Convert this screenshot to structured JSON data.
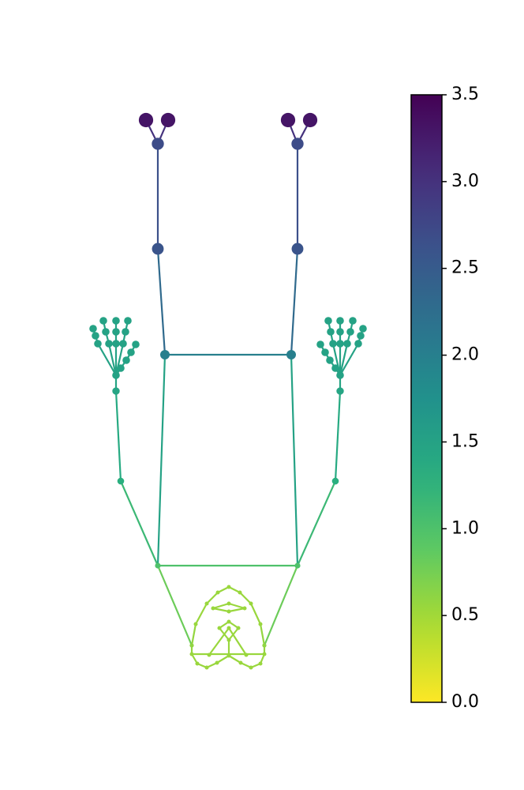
{
  "chart_data": {
    "type": "skeleton",
    "colormap": "viridis",
    "reverse_colormap": true,
    "clim": [
      0,
      3.5
    ],
    "cticks": [
      {
        "value": 0,
        "label": "0.0"
      },
      {
        "value": 0.5,
        "label": "0.5"
      },
      {
        "value": 1,
        "label": "1.0"
      },
      {
        "value": 1.5,
        "label": "1.5"
      },
      {
        "value": 2,
        "label": "2.0"
      },
      {
        "value": 2.5,
        "label": "2.5"
      },
      {
        "value": 3,
        "label": "3.0"
      },
      {
        "value": 3.5,
        "label": "3.5"
      }
    ],
    "xlim": [
      0,
      664
    ],
    "ylim": [
      1000,
      0
    ],
    "joints": {
      "x": [
        200,
        377,
        153,
        425,
        147,
        431,
        209,
        369,
        200,
        377,
        200,
        377,
        185,
        213,
        365,
        393,
        243,
        335,
        243,
        250,
        262,
        275,
        290,
        305,
        318,
        330,
        335,
        330,
        318,
        304,
        290,
        276,
        262,
        248,
        265,
        312,
        290,
        290,
        278,
        302,
        290,
        270,
        310,
        290,
        290,
        147,
        153,
        160,
        166,
        172,
        124,
        121,
        118,
        138,
        134,
        131,
        147,
        147,
        147,
        156,
        159,
        162,
        431,
        425,
        418,
        412,
        406,
        454,
        457,
        460,
        440,
        444,
        447,
        431,
        431,
        431,
        422,
        419,
        416
      ],
      "y": [
        284,
        284,
        391,
        391,
        505,
        505,
        551,
        551,
        685,
        685,
        818,
        818,
        848,
        848,
        848,
        848,
        183,
        183,
        172,
        160,
        155,
        161,
        170,
        161,
        155,
        160,
        172,
        210,
        236,
        250,
        257,
        250,
        236,
        210,
        171,
        171,
        190,
        205,
        205,
        205,
        213,
        230,
        230,
        226,
        236,
        525,
        534,
        544,
        554,
        564,
        565,
        575,
        584,
        565,
        580,
        594,
        565,
        580,
        594,
        565,
        580,
        594,
        525,
        534,
        544,
        554,
        564,
        565,
        575,
        584,
        565,
        580,
        594,
        565,
        580,
        594,
        565,
        580,
        594
      ],
      "values": [
        1.0,
        1.0,
        1.3,
        1.3,
        1.45,
        1.45,
        2.0,
        2.0,
        2.6,
        2.6,
        2.7,
        2.7,
        3.3,
        3.3,
        3.3,
        3.3,
        0.6,
        0.6,
        0.55,
        0.55,
        0.55,
        0.55,
        0.55,
        0.55,
        0.55,
        0.55,
        0.55,
        0.55,
        0.55,
        0.55,
        0.55,
        0.55,
        0.55,
        0.55,
        0.55,
        0.55,
        0.55,
        0.55,
        0.55,
        0.55,
        0.55,
        0.55,
        0.55,
        0.55,
        0.55,
        1.5,
        1.5,
        1.5,
        1.5,
        1.5,
        1.5,
        1.5,
        1.5,
        1.5,
        1.5,
        1.5,
        1.5,
        1.5,
        1.5,
        1.5,
        1.5,
        1.5,
        1.5,
        1.5,
        1.5,
        1.5,
        1.5,
        1.5,
        1.5,
        1.5,
        1.5,
        1.5,
        1.5,
        1.5,
        1.5,
        1.5,
        1.5,
        1.5,
        1.5
      ]
    },
    "edges": [
      [
        0,
        1
      ],
      [
        0,
        2
      ],
      [
        2,
        4
      ],
      [
        1,
        3
      ],
      [
        3,
        5
      ],
      [
        0,
        6
      ],
      [
        1,
        7
      ],
      [
        6,
        7
      ],
      [
        6,
        8
      ],
      [
        8,
        10
      ],
      [
        10,
        12
      ],
      [
        10,
        13
      ],
      [
        7,
        9
      ],
      [
        9,
        11
      ],
      [
        11,
        14
      ],
      [
        11,
        15
      ],
      [
        0,
        16
      ],
      [
        1,
        17
      ],
      [
        16,
        18
      ],
      [
        18,
        19
      ],
      [
        19,
        20
      ],
      [
        20,
        21
      ],
      [
        21,
        22
      ],
      [
        22,
        23
      ],
      [
        23,
        24
      ],
      [
        24,
        25
      ],
      [
        25,
        26
      ],
      [
        26,
        17
      ],
      [
        17,
        27
      ],
      [
        27,
        28
      ],
      [
        28,
        29
      ],
      [
        29,
        30
      ],
      [
        30,
        31
      ],
      [
        31,
        32
      ],
      [
        32,
        33
      ],
      [
        33,
        16
      ],
      [
        18,
        26
      ],
      [
        22,
        36
      ],
      [
        36,
        38
      ],
      [
        36,
        39
      ],
      [
        38,
        40
      ],
      [
        39,
        40
      ],
      [
        34,
        37
      ],
      [
        35,
        37
      ],
      [
        41,
        43
      ],
      [
        43,
        42
      ],
      [
        42,
        44
      ],
      [
        44,
        41
      ],
      [
        4,
        45
      ],
      [
        45,
        46
      ],
      [
        46,
        47
      ],
      [
        47,
        48
      ],
      [
        48,
        49
      ],
      [
        45,
        50
      ],
      [
        50,
        51
      ],
      [
        51,
        52
      ],
      [
        45,
        53
      ],
      [
        53,
        54
      ],
      [
        54,
        55
      ],
      [
        45,
        56
      ],
      [
        56,
        57
      ],
      [
        57,
        58
      ],
      [
        45,
        59
      ],
      [
        59,
        60
      ],
      [
        60,
        61
      ],
      [
        5,
        62
      ],
      [
        62,
        63
      ],
      [
        63,
        64
      ],
      [
        64,
        65
      ],
      [
        65,
        66
      ],
      [
        62,
        67
      ],
      [
        67,
        68
      ],
      [
        68,
        69
      ],
      [
        62,
        70
      ],
      [
        70,
        71
      ],
      [
        71,
        72
      ],
      [
        62,
        73
      ],
      [
        73,
        74
      ],
      [
        74,
        75
      ],
      [
        62,
        76
      ],
      [
        76,
        77
      ],
      [
        77,
        78
      ]
    ]
  }
}
